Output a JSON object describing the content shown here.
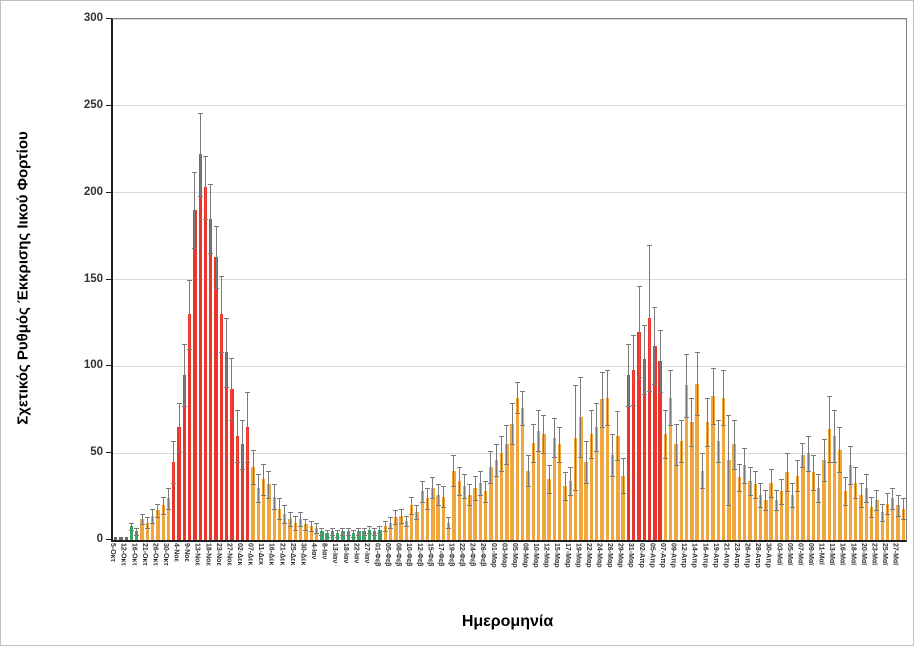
{
  "chart_data": {
    "type": "bar",
    "title": "",
    "xlabel": "Ημερομηνία",
    "ylabel": "Σχετικός Ρυθμός Έκκρισης Ιικού Φορτίου",
    "ylim": [
      0,
      300
    ],
    "yticks": [
      0,
      50,
      100,
      150,
      200,
      250,
      300
    ],
    "grid": "horizontal",
    "legend": "none",
    "label_every_n_bars": 2,
    "x_tick_labels": [
      "5-Οκτ",
      "12-Οκτ",
      "16-Οκτ",
      "21-Οκτ",
      "26-Οκτ",
      "30-Οκτ",
      "4-Νοε",
      "9-Νοε",
      "13-Νοε",
      "18-Νοε",
      "23-Νοε",
      "27-Νοε",
      "02-Δεκ",
      "07-Δεκ",
      "11-Δεκ",
      "16-Δεκ",
      "21-Δεκ",
      "25-Δεκ",
      "30-Δεκ",
      "4-Ιαν",
      "8-Ιαν",
      "13-Ιαν",
      "18-Ιαν",
      "22-Ιαν",
      "27-Ιαν",
      "01-Φεβ",
      "05-Φεβ",
      "08-Φεβ",
      "10-Φεβ",
      "12-Φεβ",
      "15-Φεβ",
      "17-Φεβ",
      "19-Φεβ",
      "22-Φεβ",
      "24-Φεβ",
      "26-Φεβ",
      "01-Μαρ",
      "03-Μαρ",
      "05-Μαρ",
      "08-Μαρ",
      "10-Μαρ",
      "12-Μαρ",
      "15-Μαρ",
      "17-Μαρ",
      "19-Μαρ",
      "22-Μαρ",
      "24-Μαρ",
      "26-Μαρ",
      "29-Μαρ",
      "31-Μαρ",
      "02-Απρ",
      "05-Απρ",
      "07-Απρ",
      "09-Απρ",
      "12-Απρ",
      "14-Απρ",
      "16-Απρ",
      "19-Απρ",
      "21-Απρ",
      "23-Απρ",
      "26-Απρ",
      "28-Απρ",
      "30-Απρ",
      "03-Μαϊ",
      "05-Μαϊ",
      "07-Μαϊ",
      "09-Μαϊ",
      "11-Μαϊ",
      "13-Μαϊ",
      "16-Μαϊ",
      "18-Μαϊ",
      "20-Μαϊ",
      "23-Μαϊ",
      "25-Μαϊ",
      "27-Μαϊ"
    ],
    "color_key_legend": {
      "0": "gray",
      "1": "green",
      "2": "orange",
      "3": "red"
    },
    "colors": {
      "gray": "#6a6a6a",
      "green": "#3aa566",
      "orange": "#f0a73e",
      "red": "#e8362c",
      "error_bar": "#7a7a7a",
      "gridline": "#d9d9d9",
      "axis": "#1f1f1f",
      "plot_border": "#808080"
    },
    "bars": [
      [
        1.5,
        0,
        0
      ],
      [
        1.5,
        0,
        0
      ],
      [
        1.5,
        0,
        0
      ],
      [
        8,
        2,
        1
      ],
      [
        5,
        2,
        1
      ],
      [
        12,
        3,
        2
      ],
      [
        10,
        3,
        2
      ],
      [
        14,
        4,
        2
      ],
      [
        17,
        4,
        2
      ],
      [
        20,
        5,
        2
      ],
      [
        24,
        6,
        2
      ],
      [
        45,
        12,
        3
      ],
      [
        65,
        14,
        3
      ],
      [
        95,
        18,
        3
      ],
      [
        130,
        20,
        3
      ],
      [
        190,
        22,
        3
      ],
      [
        222,
        24,
        3
      ],
      [
        203,
        18,
        3
      ],
      [
        185,
        20,
        3
      ],
      [
        163,
        18,
        3
      ],
      [
        130,
        22,
        3
      ],
      [
        108,
        20,
        3
      ],
      [
        87,
        18,
        3
      ],
      [
        60,
        15,
        3
      ],
      [
        55,
        14,
        3
      ],
      [
        65,
        20,
        3
      ],
      [
        42,
        10,
        2
      ],
      [
        30,
        8,
        2
      ],
      [
        35,
        9,
        2
      ],
      [
        32,
        8,
        2
      ],
      [
        25,
        7,
        2
      ],
      [
        18,
        6,
        2
      ],
      [
        15,
        5,
        2
      ],
      [
        12,
        4,
        2
      ],
      [
        10,
        4,
        2
      ],
      [
        12,
        4,
        2
      ],
      [
        9,
        3,
        2
      ],
      [
        8,
        3,
        2
      ],
      [
        7,
        3,
        2
      ],
      [
        5,
        2,
        1
      ],
      [
        4,
        2,
        1
      ],
      [
        5,
        2,
        1
      ],
      [
        4,
        2,
        1
      ],
      [
        5,
        2,
        1
      ],
      [
        5,
        2,
        1
      ],
      [
        4,
        2,
        1
      ],
      [
        5,
        2,
        1
      ],
      [
        5,
        2,
        1
      ],
      [
        6,
        2,
        1
      ],
      [
        5,
        2,
        1
      ],
      [
        6,
        2,
        1
      ],
      [
        8,
        3,
        2
      ],
      [
        10,
        3,
        2
      ],
      [
        13,
        4,
        2
      ],
      [
        14,
        4,
        2
      ],
      [
        11,
        3,
        2
      ],
      [
        20,
        5,
        2
      ],
      [
        16,
        4,
        2
      ],
      [
        28,
        6,
        2
      ],
      [
        24,
        6,
        2
      ],
      [
        30,
        6,
        2
      ],
      [
        26,
        6,
        2
      ],
      [
        25,
        6,
        2
      ],
      [
        10,
        3,
        2
      ],
      [
        40,
        9,
        2
      ],
      [
        34,
        8,
        2
      ],
      [
        31,
        7,
        2
      ],
      [
        26,
        6,
        2
      ],
      [
        30,
        7,
        2
      ],
      [
        33,
        7,
        2
      ],
      [
        28,
        6,
        2
      ],
      [
        42,
        9,
        2
      ],
      [
        46,
        9,
        2
      ],
      [
        50,
        10,
        2
      ],
      [
        55,
        11,
        2
      ],
      [
        67,
        12,
        2
      ],
      [
        82,
        9,
        2
      ],
      [
        76,
        10,
        2
      ],
      [
        40,
        9,
        2
      ],
      [
        56,
        11,
        2
      ],
      [
        63,
        12,
        2
      ],
      [
        61,
        11,
        2
      ],
      [
        35,
        8,
        2
      ],
      [
        59,
        11,
        2
      ],
      [
        55,
        10,
        2
      ],
      [
        31,
        8,
        2
      ],
      [
        34,
        8,
        2
      ],
      [
        59,
        30,
        2
      ],
      [
        71,
        23,
        2
      ],
      [
        45,
        12,
        2
      ],
      [
        61,
        14,
        2
      ],
      [
        65,
        14,
        2
      ],
      [
        81,
        16,
        2
      ],
      [
        82,
        16,
        2
      ],
      [
        49,
        12,
        2
      ],
      [
        60,
        14,
        2
      ],
      [
        37,
        10,
        2
      ],
      [
        95,
        18,
        3
      ],
      [
        98,
        20,
        3
      ],
      [
        120,
        26,
        3
      ],
      [
        104,
        20,
        3
      ],
      [
        128,
        42,
        3
      ],
      [
        112,
        22,
        3
      ],
      [
        103,
        18,
        3
      ],
      [
        61,
        14,
        2
      ],
      [
        82,
        16,
        2
      ],
      [
        55,
        12,
        2
      ],
      [
        57,
        12,
        2
      ],
      [
        89,
        18,
        2
      ],
      [
        68,
        14,
        2
      ],
      [
        90,
        18,
        2
      ],
      [
        40,
        10,
        2
      ],
      [
        68,
        14,
        2
      ],
      [
        83,
        16,
        2
      ],
      [
        57,
        12,
        2
      ],
      [
        82,
        16,
        2
      ],
      [
        46,
        26,
        2
      ],
      [
        55,
        14,
        2
      ],
      [
        36,
        8,
        2
      ],
      [
        43,
        10,
        2
      ],
      [
        34,
        8,
        2
      ],
      [
        32,
        8,
        2
      ],
      [
        26,
        7,
        2
      ],
      [
        23,
        6,
        2
      ],
      [
        33,
        8,
        2
      ],
      [
        23,
        6,
        2
      ],
      [
        28,
        7,
        2
      ],
      [
        39,
        11,
        2
      ],
      [
        26,
        7,
        2
      ],
      [
        37,
        9,
        2
      ],
      [
        49,
        7,
        2
      ],
      [
        50,
        10,
        2
      ],
      [
        39,
        10,
        2
      ],
      [
        30,
        8,
        2
      ],
      [
        46,
        12,
        2
      ],
      [
        64,
        19,
        2
      ],
      [
        60,
        15,
        2
      ],
      [
        52,
        13,
        2
      ],
      [
        28,
        8,
        2
      ],
      [
        43,
        11,
        2
      ],
      [
        33,
        9,
        2
      ],
      [
        26,
        7,
        2
      ],
      [
        30,
        8,
        2
      ],
      [
        19,
        6,
        2
      ],
      [
        23,
        6,
        2
      ],
      [
        16,
        5,
        2
      ],
      [
        21,
        6,
        2
      ],
      [
        24,
        6,
        2
      ],
      [
        20,
        6,
        2
      ],
      [
        18,
        6,
        2
      ]
    ]
  }
}
